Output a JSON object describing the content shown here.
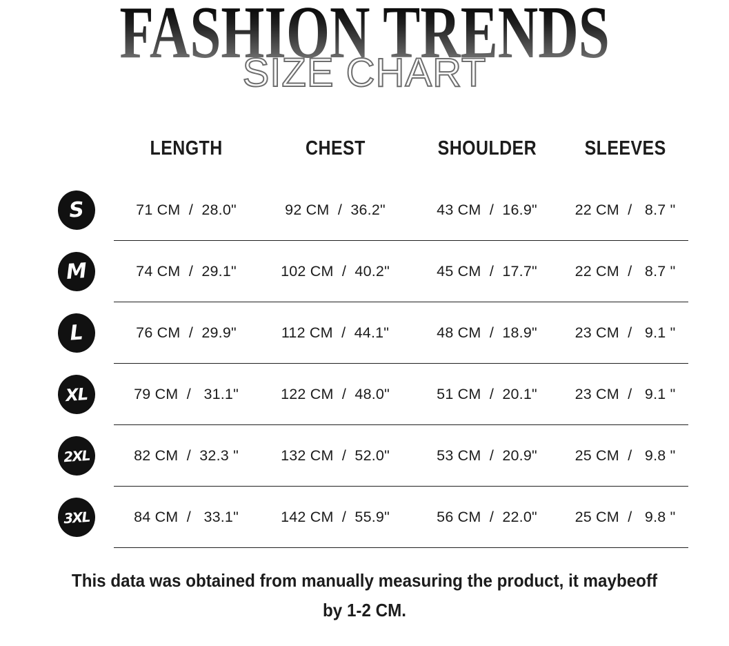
{
  "title": "FASHION TRENDS",
  "subtitle": "SIZE CHART",
  "table": {
    "columns": [
      "LENGTH",
      "CHEST",
      "SHOULDER",
      "SLEEVES"
    ],
    "rows": [
      {
        "size": "S",
        "cells": [
          "71 CM  /  28.0\"",
          "92 CM  /  36.2\"",
          "43 CM  /  16.9\"",
          "22 CM  /   8.7 \""
        ],
        "measurements": {
          "length_cm": 71,
          "length_in": 28.0,
          "chest_cm": 92,
          "chest_in": 36.2,
          "shoulder_cm": 43,
          "shoulder_in": 16.9,
          "sleeves_cm": 22,
          "sleeves_in": 8.7
        }
      },
      {
        "size": "M",
        "cells": [
          "74 CM  /  29.1\"",
          "102 CM  /  40.2\"",
          "45 CM  /  17.7\"",
          "22 CM  /   8.7 \""
        ],
        "measurements": {
          "length_cm": 74,
          "length_in": 29.1,
          "chest_cm": 102,
          "chest_in": 40.2,
          "shoulder_cm": 45,
          "shoulder_in": 17.7,
          "sleeves_cm": 22,
          "sleeves_in": 8.7
        }
      },
      {
        "size": "L",
        "cells": [
          "76 CM  /  29.9\"",
          "112 CM  /  44.1\"",
          "48 CM  /  18.9\"",
          "23 CM  /   9.1 \""
        ],
        "measurements": {
          "length_cm": 76,
          "length_in": 29.9,
          "chest_cm": 112,
          "chest_in": 44.1,
          "shoulder_cm": 48,
          "shoulder_in": 18.9,
          "sleeves_cm": 23,
          "sleeves_in": 9.1
        }
      },
      {
        "size": "XL",
        "cells": [
          "79 CM  /   31.1\"",
          "122 CM  /  48.0\"",
          "51 CM  /  20.1\"",
          "23 CM  /   9.1 \""
        ],
        "measurements": {
          "length_cm": 79,
          "length_in": 31.1,
          "chest_cm": 122,
          "chest_in": 48.0,
          "shoulder_cm": 51,
          "shoulder_in": 20.1,
          "sleeves_cm": 23,
          "sleeves_in": 9.1
        }
      },
      {
        "size": "2XL",
        "cells": [
          "82 CM  /  32.3 \"",
          "132 CM  /  52.0\"",
          "53 CM  /  20.9\"",
          "25 CM  /   9.8 \""
        ],
        "measurements": {
          "length_cm": 82,
          "length_in": 32.3,
          "chest_cm": 132,
          "chest_in": 52.0,
          "shoulder_cm": 53,
          "shoulder_in": 20.9,
          "sleeves_cm": 25,
          "sleeves_in": 9.8
        }
      },
      {
        "size": "3XL",
        "cells": [
          "84 CM  /   33.1\"",
          "142 CM  /  55.9\"",
          "56 CM  /  22.0\"",
          "25 CM  /   9.8 \""
        ],
        "measurements": {
          "length_cm": 84,
          "length_in": 33.1,
          "chest_cm": 142,
          "chest_in": 55.9,
          "shoulder_cm": 56,
          "shoulder_in": 22.0,
          "sleeves_cm": 25,
          "sleeves_in": 9.8
        }
      }
    ]
  },
  "footer": {
    "line1": "This data was obtained from manually measuring the product, it maybeoff",
    "line2": "by 1-2 CM."
  },
  "colors": {
    "badge_bg": "#111111",
    "badge_text": "#ffffff",
    "body_text": "#1c1c1c",
    "row_line": "#1f1f1f",
    "title_gradient_top": "#000000",
    "title_gradient_bottom": "#979797",
    "subtitle_fill": "#ffffff",
    "subtitle_outline": "#6e6e6e"
  }
}
